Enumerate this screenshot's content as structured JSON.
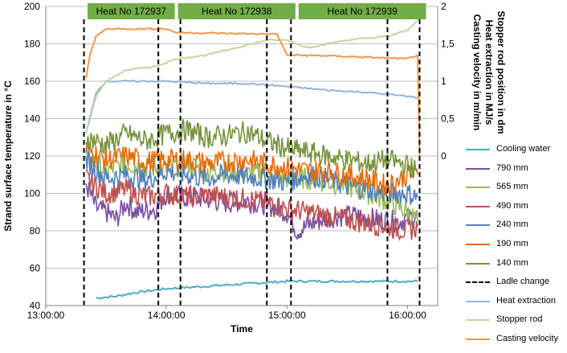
{
  "chart_data": {
    "type": "line",
    "xlabel": "Time",
    "ylabel": "Strand surface temperature in °C",
    "y2label": [
      "Casting velocity in m/min",
      "Heat extraction in MJ/s",
      "Stopper rod position in dm"
    ],
    "x_ticks": [
      "13:00:00",
      "14:00:00",
      "15:00:00",
      "16:00:00"
    ],
    "xlim": [
      "13:00:00",
      "16:15:00"
    ],
    "ylim": [
      40,
      200
    ],
    "y_ticks": [
      "40",
      "60",
      "80",
      "100",
      "120",
      "140",
      "160",
      "180",
      "200"
    ],
    "y2lim": [
      -2,
      2
    ],
    "y2_ticks": [
      "0",
      "0,5",
      "1",
      "1,5",
      "2"
    ],
    "grid": "horizontal",
    "legend_position": "right",
    "heats": [
      {
        "label": "Heat No 172937",
        "start": "13:20:00",
        "end": "14:05:00"
      },
      {
        "label": "Heat No 172938",
        "start": "14:05:00",
        "end": "15:05:00"
      },
      {
        "label": "Heat No 172939",
        "start": "15:05:00",
        "end": "16:10:00"
      }
    ],
    "ladle_changes": [
      "13:19:00",
      "13:56:00",
      "14:07:00",
      "14:50:00",
      "15:02:00",
      "15:50:00",
      "16:06:00"
    ],
    "series": [
      {
        "name": "Cooling water",
        "axis": "left",
        "color": "#4bacc6",
        "points": [
          [
            "13:25",
            44
          ],
          [
            "13:35",
            45
          ],
          [
            "13:45",
            47
          ],
          [
            "14:00",
            49
          ],
          [
            "14:15",
            50
          ],
          [
            "14:30",
            51
          ],
          [
            "14:45",
            52
          ],
          [
            "15:00",
            53
          ],
          [
            "15:15",
            53
          ],
          [
            "15:30",
            53
          ],
          [
            "15:45",
            53
          ],
          [
            "16:05",
            53
          ]
        ]
      },
      {
        "name": "790 mm",
        "axis": "left",
        "color": "#7a4fa3",
        "points": [
          [
            "13:20",
            105
          ],
          [
            "13:25",
            92
          ],
          [
            "13:30",
            90
          ],
          [
            "13:35",
            86
          ],
          [
            "13:40",
            95
          ],
          [
            "13:45",
            90
          ],
          [
            "13:55",
            92
          ],
          [
            "14:00",
            100
          ],
          [
            "14:10",
            98
          ],
          [
            "14:20",
            97
          ],
          [
            "14:30",
            95
          ],
          [
            "14:40",
            96
          ],
          [
            "14:50",
            94
          ],
          [
            "15:00",
            90
          ],
          [
            "15:05",
            80
          ],
          [
            "15:15",
            85
          ],
          [
            "15:25",
            88
          ],
          [
            "15:35",
            88
          ],
          [
            "15:45",
            86
          ],
          [
            "15:55",
            85
          ],
          [
            "16:05",
            88
          ]
        ]
      },
      {
        "name": "565 mm",
        "axis": "left",
        "color": "#9bbb59",
        "points": [
          [
            "13:20",
            120
          ],
          [
            "13:30",
            112
          ],
          [
            "13:40",
            116
          ],
          [
            "13:50",
            114
          ],
          [
            "14:00",
            113
          ],
          [
            "14:10",
            116
          ],
          [
            "14:20",
            112
          ],
          [
            "14:30",
            112
          ],
          [
            "14:40",
            110
          ],
          [
            "14:50",
            112
          ],
          [
            "15:00",
            108
          ],
          [
            "15:10",
            108
          ],
          [
            "15:20",
            106
          ],
          [
            "15:30",
            104
          ],
          [
            "15:40",
            100
          ],
          [
            "15:50",
            96
          ],
          [
            "16:00",
            90
          ],
          [
            "16:05",
            85
          ]
        ]
      },
      {
        "name": "490 mm",
        "axis": "left",
        "color": "#c0504d",
        "points": [
          [
            "13:20",
            108
          ],
          [
            "13:30",
            100
          ],
          [
            "13:40",
            102
          ],
          [
            "13:50",
            98
          ],
          [
            "14:00",
            100
          ],
          [
            "14:10",
            98
          ],
          [
            "14:20",
            99
          ],
          [
            "14:30",
            98
          ],
          [
            "14:40",
            97
          ],
          [
            "14:50",
            95
          ],
          [
            "15:00",
            92
          ],
          [
            "15:10",
            90
          ],
          [
            "15:20",
            88
          ],
          [
            "15:30",
            86
          ],
          [
            "15:40",
            84
          ],
          [
            "15:50",
            82
          ],
          [
            "16:00",
            80
          ],
          [
            "16:05",
            82
          ]
        ]
      },
      {
        "name": "240 mm",
        "axis": "left",
        "color": "#4f81bd",
        "points": [
          [
            "13:20",
            118
          ],
          [
            "13:30",
            108
          ],
          [
            "13:40",
            110
          ],
          [
            "13:50",
            107
          ],
          [
            "14:00",
            112
          ],
          [
            "14:10",
            110
          ],
          [
            "14:20",
            108
          ],
          [
            "14:30",
            110
          ],
          [
            "14:40",
            109
          ],
          [
            "14:50",
            108
          ],
          [
            "15:00",
            106
          ],
          [
            "15:10",
            110
          ],
          [
            "15:20",
            108
          ],
          [
            "15:30",
            104
          ],
          [
            "15:40",
            102
          ],
          [
            "15:50",
            100
          ],
          [
            "16:00",
            100
          ],
          [
            "16:05",
            98
          ]
        ]
      },
      {
        "name": "190 mm",
        "axis": "left",
        "color": "#e46c0a",
        "points": [
          [
            "13:20",
            124
          ],
          [
            "13:30",
            118
          ],
          [
            "13:40",
            120
          ],
          [
            "13:50",
            117
          ],
          [
            "14:00",
            118
          ],
          [
            "14:10",
            118
          ],
          [
            "14:20",
            116
          ],
          [
            "14:30",
            117
          ],
          [
            "14:40",
            118
          ],
          [
            "14:50",
            116
          ],
          [
            "15:00",
            114
          ],
          [
            "15:10",
            112
          ],
          [
            "15:20",
            112
          ],
          [
            "15:30",
            110
          ],
          [
            "15:40",
            108
          ],
          [
            "15:50",
            104
          ],
          [
            "16:00",
            110
          ],
          [
            "16:05",
            110
          ]
        ]
      },
      {
        "name": "140 mm",
        "axis": "left",
        "color": "#77933c",
        "points": [
          [
            "13:20",
            130
          ],
          [
            "13:30",
            126
          ],
          [
            "13:40",
            132
          ],
          [
            "13:50",
            128
          ],
          [
            "14:00",
            132
          ],
          [
            "14:10",
            134
          ],
          [
            "14:20",
            130
          ],
          [
            "14:30",
            131
          ],
          [
            "14:40",
            133
          ],
          [
            "14:50",
            128
          ],
          [
            "15:00",
            124
          ],
          [
            "15:10",
            122
          ],
          [
            "15:20",
            120
          ],
          [
            "15:30",
            118
          ],
          [
            "15:40",
            116
          ],
          [
            "15:50",
            118
          ],
          [
            "16:00",
            115
          ],
          [
            "16:05",
            112
          ]
        ]
      },
      {
        "name": "Heat extraction",
        "axis": "right",
        "color": "#95b3d7",
        "points": [
          [
            "13:20",
            0.3
          ],
          [
            "13:25",
            0.85
          ],
          [
            "13:30",
            1.0
          ],
          [
            "13:40",
            1.0
          ],
          [
            "14:00",
            1.0
          ],
          [
            "14:20",
            0.97
          ],
          [
            "14:40",
            0.97
          ],
          [
            "15:00",
            0.93
          ],
          [
            "15:20",
            0.88
          ],
          [
            "15:40",
            0.85
          ],
          [
            "16:00",
            0.8
          ],
          [
            "16:05",
            0.78
          ]
        ]
      },
      {
        "name": "Stopper rod",
        "axis": "right",
        "color": "#c3d69b",
        "points": [
          [
            "13:20",
            0.3
          ],
          [
            "13:25",
            0.8
          ],
          [
            "13:30",
            1.0
          ],
          [
            "13:40",
            1.15
          ],
          [
            "13:55",
            1.2
          ],
          [
            "14:05",
            1.3
          ],
          [
            "14:20",
            1.35
          ],
          [
            "14:35",
            1.45
          ],
          [
            "14:50",
            1.55
          ],
          [
            "15:00",
            1.55
          ],
          [
            "15:10",
            1.45
          ],
          [
            "15:30",
            1.55
          ],
          [
            "15:50",
            1.6
          ],
          [
            "16:00",
            1.68
          ],
          [
            "16:05",
            1.82
          ]
        ]
      },
      {
        "name": "Casting velocity",
        "axis": "right",
        "color": "#f79646",
        "points": [
          [
            "13:20",
            1.05
          ],
          [
            "13:22",
            1.35
          ],
          [
            "13:25",
            1.6
          ],
          [
            "13:30",
            1.7
          ],
          [
            "14:00",
            1.7
          ],
          [
            "14:05",
            1.65
          ],
          [
            "14:30",
            1.64
          ],
          [
            "14:55",
            1.63
          ],
          [
            "15:00",
            1.35
          ],
          [
            "15:20",
            1.34
          ],
          [
            "15:40",
            1.32
          ],
          [
            "16:00",
            1.3
          ],
          [
            "16:05",
            1.35
          ],
          [
            "16:06",
            0.0
          ]
        ]
      }
    ]
  },
  "legend": [
    {
      "name": "Cooling water",
      "color": "#4bacc6",
      "dashed": false
    },
    {
      "name": "790 mm",
      "color": "#7a4fa3",
      "dashed": false
    },
    {
      "name": "565 mm",
      "color": "#9bbb59",
      "dashed": false
    },
    {
      "name": "490 mm",
      "color": "#c0504d",
      "dashed": false
    },
    {
      "name": "240 mm",
      "color": "#4f81bd",
      "dashed": false
    },
    {
      "name": "190 mm",
      "color": "#e46c0a",
      "dashed": false
    },
    {
      "name": "140 mm",
      "color": "#77933c",
      "dashed": false
    },
    {
      "name": "Ladle change",
      "color": "#000000",
      "dashed": true
    },
    {
      "name": "Heat extraction",
      "color": "#95b3d7",
      "dashed": false
    },
    {
      "name": "Stopper rod",
      "color": "#c3d69b",
      "dashed": false
    },
    {
      "name": "Casting velocity",
      "color": "#f79646",
      "dashed": false
    }
  ],
  "colors": {
    "heat_band": "#70ad47",
    "grid": "#bfbfbf",
    "axis": "#7f7f7f"
  }
}
